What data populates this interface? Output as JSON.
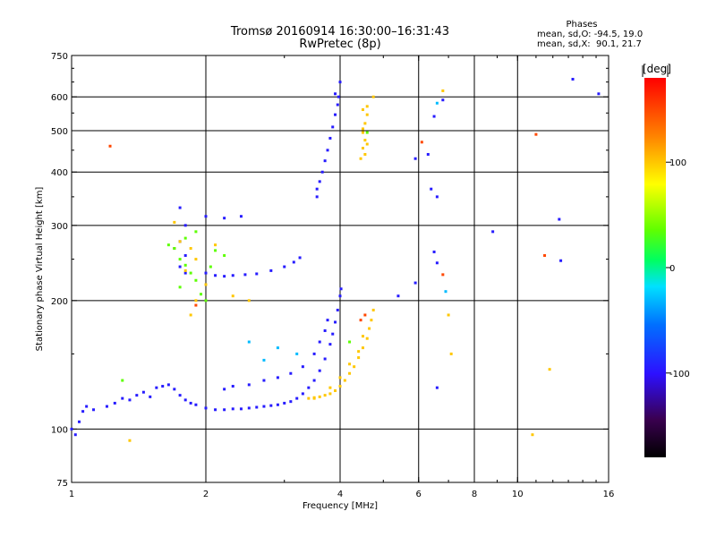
{
  "title_line1": "Tromsø 20160914 16:30:00–16:31:43",
  "title_line2": "RwPretec (8p)",
  "phase_info": {
    "heading": "Phases",
    "o_stats": "mean, sd,O: -94.5, 19.0",
    "x_stats": "mean, sd,X:  90.1, 21.7"
  },
  "chart_data": {
    "type": "scatter",
    "xlabel": "Frequency [MHz]",
    "ylabel": "Stationary phase Virtual Height [km]",
    "x_scale": "log",
    "y_scale": "log",
    "xlim": [
      1,
      16
    ],
    "ylim": [
      75,
      750
    ],
    "x_ticks": [
      1,
      2,
      4,
      6,
      8,
      10,
      16
    ],
    "x_tick_labels": [
      "1",
      "2",
      "4",
      "6",
      "8",
      "10",
      "16"
    ],
    "x_grid": [
      2,
      4,
      6,
      8,
      10
    ],
    "y_ticks": [
      75,
      100,
      200,
      300,
      400,
      500,
      600,
      750
    ],
    "y_tick_labels": [
      "75",
      "100",
      "200",
      "300",
      "400",
      "500",
      "600",
      "750"
    ],
    "y_grid": [
      100,
      200,
      300,
      400,
      500,
      600
    ],
    "grid": true,
    "colorbar": {
      "label": "[deg]",
      "min": -180,
      "max": 180,
      "ticks": [
        -100,
        0,
        100
      ],
      "tick_labels": [
        "-100",
        "0",
        "100"
      ],
      "placement": "right"
    },
    "series": [
      {
        "color_phase": -95,
        "points": [
          [
            1.0,
            100
          ],
          [
            1.02,
            97
          ],
          [
            1.04,
            104
          ],
          [
            1.06,
            110
          ],
          [
            1.08,
            113
          ],
          [
            1.12,
            111
          ],
          [
            1.2,
            113
          ],
          [
            1.25,
            115
          ],
          [
            1.3,
            118
          ],
          [
            1.35,
            117
          ],
          [
            1.4,
            120
          ],
          [
            1.45,
            122
          ],
          [
            1.5,
            119
          ],
          [
            1.55,
            125
          ],
          [
            1.6,
            126
          ],
          [
            1.65,
            127
          ],
          [
            1.7,
            124
          ],
          [
            1.75,
            120
          ],
          [
            1.8,
            117
          ],
          [
            1.85,
            115
          ],
          [
            1.9,
            114
          ],
          [
            2.0,
            112
          ],
          [
            2.1,
            111
          ],
          [
            2.2,
            111
          ],
          [
            2.3,
            111.5
          ],
          [
            2.4,
            111.5
          ],
          [
            2.5,
            112
          ],
          [
            2.6,
            112.5
          ],
          [
            2.7,
            113
          ],
          [
            2.8,
            113.5
          ],
          [
            2.9,
            114
          ],
          [
            3.0,
            115
          ],
          [
            3.1,
            116
          ],
          [
            3.2,
            118
          ],
          [
            3.3,
            121
          ],
          [
            3.4,
            125
          ],
          [
            3.5,
            130
          ],
          [
            3.6,
            137
          ],
          [
            3.7,
            146
          ],
          [
            3.8,
            158
          ],
          [
            3.85,
            167
          ],
          [
            3.9,
            178
          ],
          [
            3.95,
            190
          ],
          [
            4.0,
            205
          ],
          [
            4.02,
            213
          ],
          [
            2.2,
            124
          ],
          [
            2.3,
            126
          ],
          [
            2.5,
            127
          ],
          [
            2.7,
            130
          ],
          [
            2.9,
            132
          ],
          [
            3.1,
            135
          ],
          [
            3.3,
            140
          ],
          [
            3.5,
            150
          ],
          [
            3.6,
            160
          ],
          [
            3.7,
            170
          ],
          [
            3.75,
            180
          ],
          [
            2.0,
            232
          ],
          [
            2.1,
            229
          ],
          [
            2.2,
            228
          ],
          [
            2.3,
            229
          ],
          [
            2.45,
            230
          ],
          [
            2.6,
            231
          ],
          [
            2.8,
            235
          ],
          [
            3.0,
            240
          ],
          [
            3.15,
            246
          ],
          [
            3.25,
            252
          ],
          [
            1.8,
            232
          ],
          [
            1.75,
            240
          ],
          [
            1.8,
            255
          ],
          [
            1.7,
            265
          ],
          [
            1.75,
            275
          ],
          [
            1.8,
            300
          ],
          [
            1.75,
            330
          ],
          [
            2.0,
            315
          ],
          [
            2.2,
            312
          ],
          [
            2.4,
            315
          ],
          [
            3.55,
            350
          ],
          [
            3.55,
            365
          ],
          [
            3.6,
            380
          ],
          [
            3.65,
            400
          ],
          [
            3.7,
            425
          ],
          [
            3.75,
            450
          ],
          [
            3.8,
            480
          ],
          [
            3.85,
            510
          ],
          [
            3.9,
            545
          ],
          [
            3.95,
            575
          ],
          [
            3.97,
            600
          ],
          [
            3.9,
            610
          ],
          [
            4.0,
            650
          ],
          [
            6.8,
            590
          ],
          [
            6.5,
            540
          ],
          [
            6.3,
            440
          ],
          [
            5.9,
            430
          ],
          [
            6.4,
            365
          ],
          [
            6.6,
            350
          ],
          [
            6.5,
            260
          ],
          [
            6.6,
            245
          ],
          [
            5.9,
            220
          ],
          [
            8.8,
            290
          ],
          [
            12.4,
            310
          ],
          [
            12.5,
            248
          ],
          [
            13.3,
            660
          ],
          [
            15.2,
            610
          ],
          [
            6.6,
            125
          ],
          [
            5.4,
            205
          ]
        ]
      },
      {
        "color_phase": 100,
        "points": [
          [
            3.4,
            118
          ],
          [
            3.5,
            118.5
          ],
          [
            3.6,
            119
          ],
          [
            3.7,
            120
          ],
          [
            3.8,
            121
          ],
          [
            3.9,
            123
          ],
          [
            4.0,
            126
          ],
          [
            4.1,
            130
          ],
          [
            4.2,
            135
          ],
          [
            4.3,
            140
          ],
          [
            4.4,
            147
          ],
          [
            4.5,
            155
          ],
          [
            4.6,
            163
          ],
          [
            4.65,
            172
          ],
          [
            4.7,
            180
          ],
          [
            4.75,
            190
          ],
          [
            3.8,
            125
          ],
          [
            4.0,
            132
          ],
          [
            4.2,
            142
          ],
          [
            4.4,
            152
          ],
          [
            4.5,
            165
          ],
          [
            4.45,
            430
          ],
          [
            4.5,
            455
          ],
          [
            4.55,
            475
          ],
          [
            4.5,
            495
          ],
          [
            4.55,
            520
          ],
          [
            4.6,
            545
          ],
          [
            4.5,
            560
          ],
          [
            4.6,
            570
          ],
          [
            4.55,
            440
          ],
          [
            4.6,
            465
          ],
          [
            4.5,
            505
          ],
          [
            1.7,
            305
          ],
          [
            1.75,
            275
          ],
          [
            1.7,
            265
          ],
          [
            1.85,
            265
          ],
          [
            1.9,
            250
          ],
          [
            1.8,
            235
          ],
          [
            2.0,
            218
          ],
          [
            1.9,
            200
          ],
          [
            1.85,
            185
          ],
          [
            2.3,
            205
          ],
          [
            2.5,
            200
          ],
          [
            2.1,
            270
          ],
          [
            6.8,
            620
          ],
          [
            4.75,
            600
          ],
          [
            10.8,
            97
          ],
          [
            1.35,
            94
          ],
          [
            7.0,
            185
          ],
          [
            7.1,
            150
          ],
          [
            3.5,
            118
          ],
          [
            11.8,
            138
          ]
        ]
      },
      {
        "color_phase": 35,
        "points": [
          [
            1.7,
            265
          ],
          [
            1.75,
            250
          ],
          [
            1.8,
            242
          ],
          [
            1.85,
            232
          ],
          [
            1.9,
            223
          ],
          [
            1.75,
            215
          ],
          [
            1.95,
            207
          ],
          [
            2.0,
            200
          ],
          [
            1.9,
            290
          ],
          [
            2.1,
            262
          ],
          [
            2.2,
            255
          ],
          [
            1.8,
            280
          ],
          [
            2.05,
            240
          ],
          [
            1.65,
            270
          ],
          [
            1.3,
            130
          ],
          [
            4.2,
            160
          ],
          [
            4.6,
            495
          ]
        ]
      },
      {
        "color_phase": -30,
        "points": [
          [
            2.9,
            155
          ],
          [
            3.2,
            150
          ],
          [
            2.5,
            160
          ],
          [
            6.6,
            580
          ],
          [
            2.7,
            145
          ],
          [
            6.9,
            210
          ]
        ]
      },
      {
        "color_phase": 150,
        "points": [
          [
            1.22,
            460
          ],
          [
            4.45,
            180
          ],
          [
            4.55,
            185
          ],
          [
            1.9,
            195
          ],
          [
            6.1,
            470
          ],
          [
            11.5,
            255
          ],
          [
            11.0,
            490
          ],
          [
            6.8,
            230
          ]
        ]
      }
    ]
  }
}
